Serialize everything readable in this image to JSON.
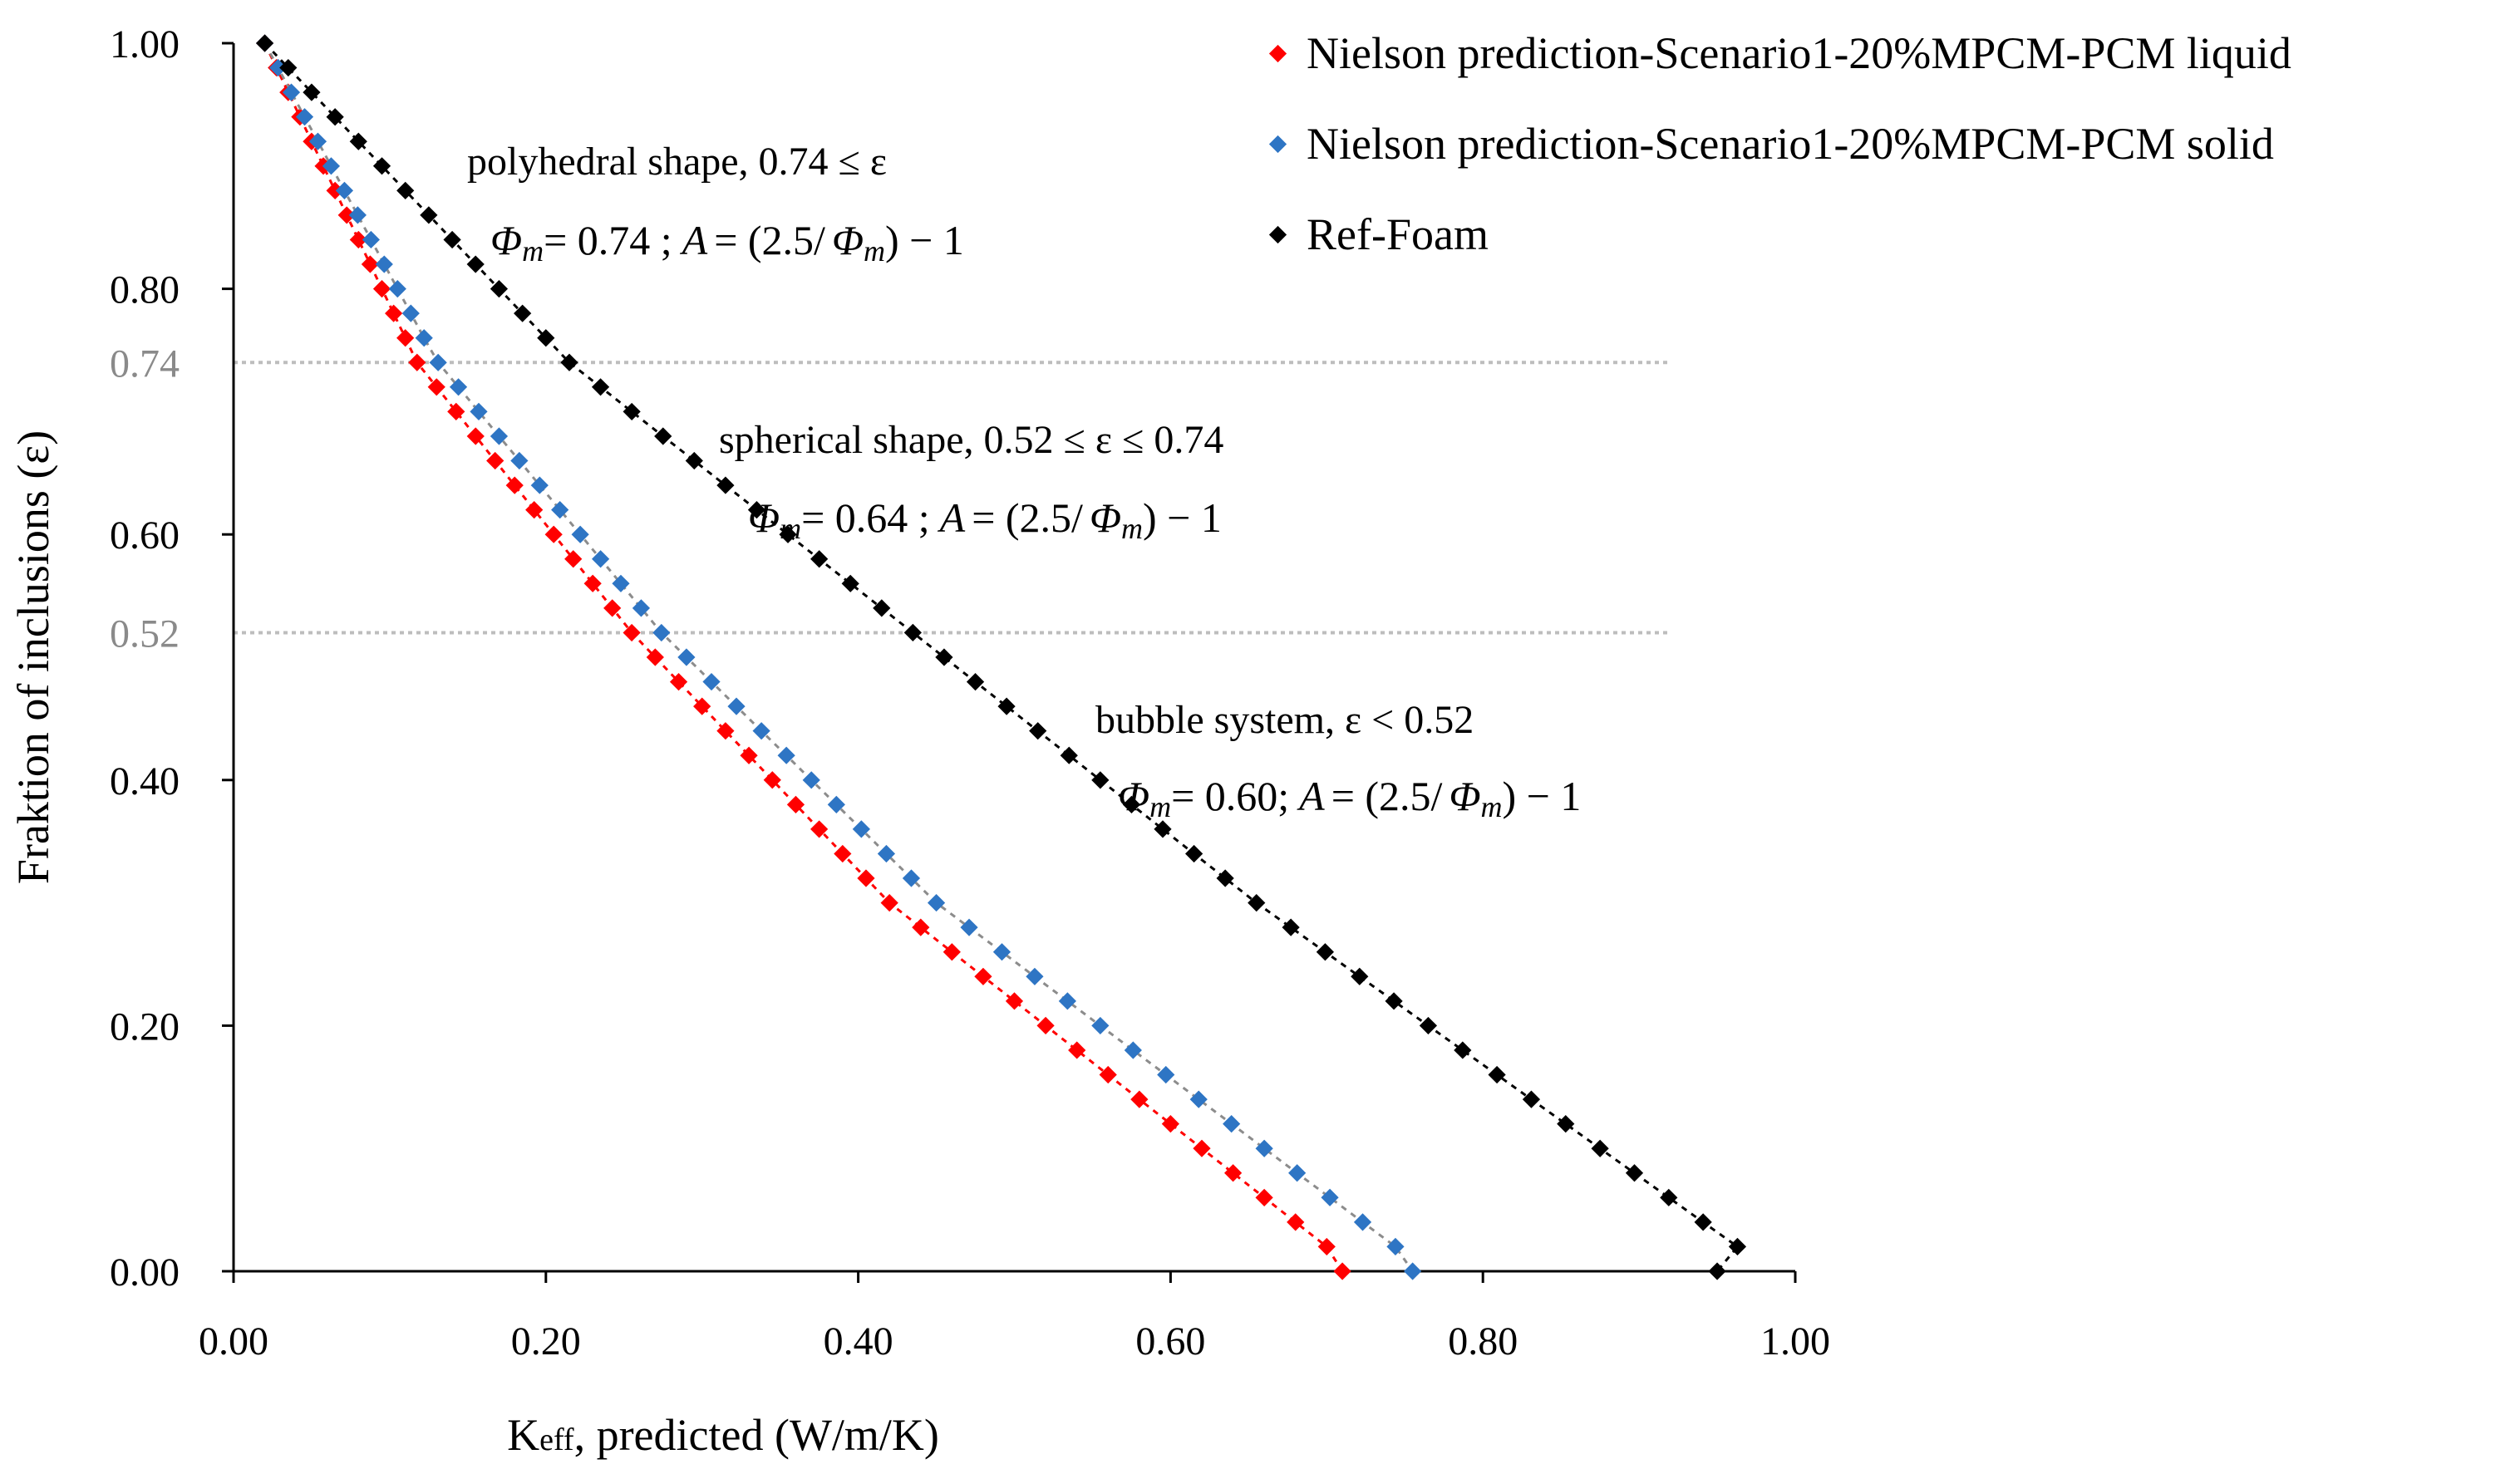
{
  "chart_data": {
    "type": "scatter",
    "xlabel": "Keff, predicted (W/m/K)",
    "xlabel_main": "K",
    "xlabel_sub": "eff",
    "xlabel_rest": ", predicted (W/m/K)",
    "ylabel": "Fraktion of inclusions (ε)",
    "xlim": [
      0,
      1
    ],
    "ylim": [
      0,
      1
    ],
    "xticks": [
      "0.00",
      "0.20",
      "0.40",
      "0.60",
      "0.80",
      "1.00"
    ],
    "yticks": [
      "0.00",
      "0.20",
      "0.40",
      "0.60",
      "0.80",
      "1.00"
    ],
    "ref_lines": [
      {
        "y": 0.74,
        "label": "0.74",
        "color": "#bdbdbd"
      },
      {
        "y": 0.52,
        "label": "0.52",
        "color": "#bdbdbd"
      }
    ],
    "legend_position": "top-right",
    "series": [
      {
        "name": "Nielson prediction-Scenario1-20%MPCM-PCM liquid",
        "color": "#ff0000",
        "line_color": "#ff0000",
        "points": [
          [
            0.02,
            1.0
          ],
          [
            0.0275,
            0.98
          ],
          [
            0.035,
            0.96
          ],
          [
            0.0425,
            0.94
          ],
          [
            0.05,
            0.92
          ],
          [
            0.0575,
            0.9
          ],
          [
            0.065,
            0.88
          ],
          [
            0.0725,
            0.86
          ],
          [
            0.08,
            0.84
          ],
          [
            0.0875,
            0.82
          ],
          [
            0.095,
            0.8
          ],
          [
            0.1025,
            0.78
          ],
          [
            0.11,
            0.76
          ],
          [
            0.1175,
            0.74
          ],
          [
            0.13,
            0.72
          ],
          [
            0.1425,
            0.7
          ],
          [
            0.155,
            0.68
          ],
          [
            0.1675,
            0.66
          ],
          [
            0.18,
            0.64
          ],
          [
            0.1925,
            0.62
          ],
          [
            0.205,
            0.6
          ],
          [
            0.2175,
            0.58
          ],
          [
            0.23,
            0.56
          ],
          [
            0.2425,
            0.54
          ],
          [
            0.255,
            0.52
          ],
          [
            0.27,
            0.5
          ],
          [
            0.285,
            0.48
          ],
          [
            0.3,
            0.46
          ],
          [
            0.315,
            0.44
          ],
          [
            0.33,
            0.42
          ],
          [
            0.345,
            0.4
          ],
          [
            0.36,
            0.38
          ],
          [
            0.375,
            0.36
          ],
          [
            0.39,
            0.34
          ],
          [
            0.405,
            0.32
          ],
          [
            0.42,
            0.3
          ],
          [
            0.44,
            0.28
          ],
          [
            0.46,
            0.26
          ],
          [
            0.48,
            0.24
          ],
          [
            0.5,
            0.22
          ],
          [
            0.52,
            0.2
          ],
          [
            0.54,
            0.18
          ],
          [
            0.56,
            0.16
          ],
          [
            0.58,
            0.14
          ],
          [
            0.6,
            0.12
          ],
          [
            0.62,
            0.1
          ],
          [
            0.64,
            0.08
          ],
          [
            0.66,
            0.06
          ],
          [
            0.68,
            0.04
          ],
          [
            0.7,
            0.02
          ],
          [
            0.71,
            0.0
          ]
        ]
      },
      {
        "name": "Nielson prediction-Scenario1-20%MPCM-PCM solid",
        "color": "#2e75c4",
        "line_color": "#8c8c8c",
        "points": [
          [
            0.02,
            1.0
          ],
          [
            0.0285,
            0.98
          ],
          [
            0.037,
            0.96
          ],
          [
            0.0455,
            0.94
          ],
          [
            0.054,
            0.92
          ],
          [
            0.0625,
            0.9
          ],
          [
            0.071,
            0.88
          ],
          [
            0.0795,
            0.86
          ],
          [
            0.088,
            0.84
          ],
          [
            0.0965,
            0.82
          ],
          [
            0.105,
            0.8
          ],
          [
            0.1135,
            0.78
          ],
          [
            0.122,
            0.76
          ],
          [
            0.131,
            0.74
          ],
          [
            0.144,
            0.72
          ],
          [
            0.157,
            0.7
          ],
          [
            0.17,
            0.68
          ],
          [
            0.183,
            0.66
          ],
          [
            0.196,
            0.64
          ],
          [
            0.209,
            0.62
          ],
          [
            0.222,
            0.6
          ],
          [
            0.235,
            0.58
          ],
          [
            0.248,
            0.56
          ],
          [
            0.261,
            0.54
          ],
          [
            0.274,
            0.52
          ],
          [
            0.29,
            0.5
          ],
          [
            0.306,
            0.48
          ],
          [
            0.322,
            0.46
          ],
          [
            0.338,
            0.44
          ],
          [
            0.354,
            0.42
          ],
          [
            0.37,
            0.4
          ],
          [
            0.386,
            0.38
          ],
          [
            0.402,
            0.36
          ],
          [
            0.418,
            0.34
          ],
          [
            0.434,
            0.32
          ],
          [
            0.45,
            0.3
          ],
          [
            0.471,
            0.28
          ],
          [
            0.492,
            0.26
          ],
          [
            0.513,
            0.24
          ],
          [
            0.534,
            0.22
          ],
          [
            0.555,
            0.2
          ],
          [
            0.576,
            0.18
          ],
          [
            0.597,
            0.16
          ],
          [
            0.618,
            0.14
          ],
          [
            0.639,
            0.12
          ],
          [
            0.66,
            0.1
          ],
          [
            0.681,
            0.08
          ],
          [
            0.702,
            0.06
          ],
          [
            0.723,
            0.04
          ],
          [
            0.744,
            0.02
          ],
          [
            0.755,
            0.0
          ]
        ]
      },
      {
        "name": "Ref-Foam",
        "color": "#000000",
        "line_color": "#000000",
        "points": [
          [
            0.02,
            1.0
          ],
          [
            0.035,
            0.98
          ],
          [
            0.05,
            0.96
          ],
          [
            0.065,
            0.94
          ],
          [
            0.08,
            0.92
          ],
          [
            0.095,
            0.9
          ],
          [
            0.11,
            0.88
          ],
          [
            0.125,
            0.86
          ],
          [
            0.14,
            0.84
          ],
          [
            0.155,
            0.82
          ],
          [
            0.17,
            0.8
          ],
          [
            0.185,
            0.78
          ],
          [
            0.2,
            0.76
          ],
          [
            0.215,
            0.74
          ],
          [
            0.235,
            0.72
          ],
          [
            0.255,
            0.7
          ],
          [
            0.275,
            0.68
          ],
          [
            0.295,
            0.66
          ],
          [
            0.315,
            0.64
          ],
          [
            0.335,
            0.62
          ],
          [
            0.355,
            0.6
          ],
          [
            0.375,
            0.58
          ],
          [
            0.395,
            0.56
          ],
          [
            0.415,
            0.54
          ],
          [
            0.435,
            0.52
          ],
          [
            0.455,
            0.5
          ],
          [
            0.475,
            0.48
          ],
          [
            0.495,
            0.46
          ],
          [
            0.515,
            0.44
          ],
          [
            0.535,
            0.42
          ],
          [
            0.555,
            0.4
          ],
          [
            0.575,
            0.38
          ],
          [
            0.595,
            0.36
          ],
          [
            0.615,
            0.34
          ],
          [
            0.635,
            0.32
          ],
          [
            0.655,
            0.3
          ],
          [
            0.677,
            0.28
          ],
          [
            0.699,
            0.26
          ],
          [
            0.721,
            0.24
          ],
          [
            0.743,
            0.22
          ],
          [
            0.765,
            0.2
          ],
          [
            0.787,
            0.18
          ],
          [
            0.809,
            0.16
          ],
          [
            0.831,
            0.14
          ],
          [
            0.853,
            0.12
          ],
          [
            0.875,
            0.1
          ],
          [
            0.897,
            0.08
          ],
          [
            0.919,
            0.06
          ],
          [
            0.941,
            0.04
          ],
          [
            0.963,
            0.02
          ],
          [
            0.95,
            0.0
          ]
        ]
      }
    ],
    "annotations": [
      {
        "id": "polyhedral",
        "text": "polyhedral shape, 0.74 ≤ ε",
        "phi_value": "= 0.74 ;",
        "formula_tail": "= (2.5/",
        "formula_end": ") − 1"
      },
      {
        "id": "spherical",
        "text": "spherical shape, 0.52 ≤ ε ≤  0.74",
        "phi_value": "= 0.64 ;",
        "formula_tail": "= (2.5/",
        "formula_end": ") − 1"
      },
      {
        "id": "bubble",
        "text": "bubble system,  ε <  0.52",
        "phi_value": "= 0.60;",
        "formula_tail": "= (2.5/",
        "formula_end": ") − 1"
      }
    ],
    "formula_symbols": {
      "phi": "Φ",
      "phi_sub": "m",
      "a": "A"
    }
  }
}
